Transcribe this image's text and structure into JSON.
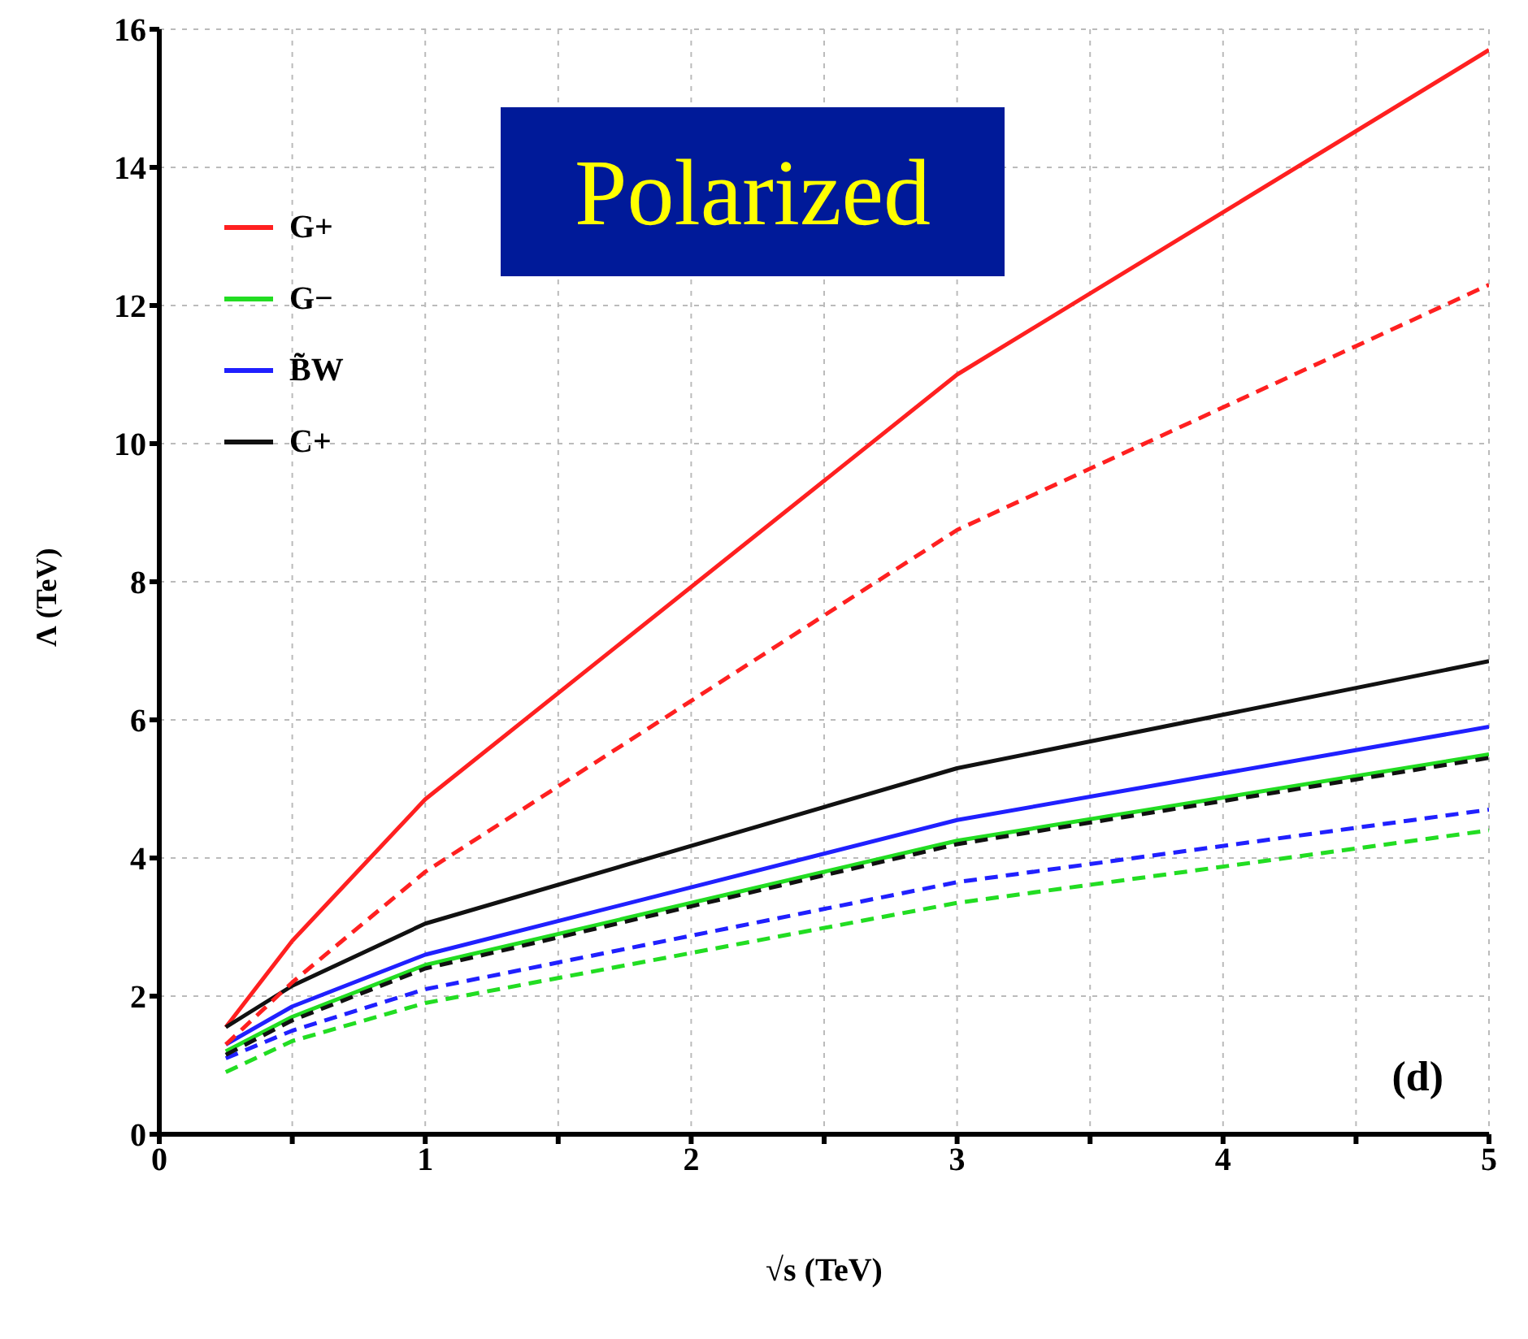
{
  "chart_data": {
    "type": "line",
    "title": "Polarized",
    "xlabel": "√s (TeV)",
    "ylabel": "Λ (TeV)",
    "annotations": [
      "(d)"
    ],
    "x": [
      0.25,
      0.5,
      1,
      3,
      5
    ],
    "series": [
      {
        "name": "G+",
        "color": "#ff2020",
        "line_style": "solid",
        "values": [
          1.55,
          2.8,
          4.85,
          11.0,
          15.7
        ]
      },
      {
        "name": "G−",
        "color": "#22dd22",
        "line_style": "solid",
        "values": [
          1.2,
          1.7,
          2.45,
          4.25,
          5.5
        ]
      },
      {
        "name": "B̃W",
        "color": "#2020ff",
        "line_style": "solid",
        "values": [
          1.3,
          1.85,
          2.6,
          4.55,
          5.9
        ]
      },
      {
        "name": "C+",
        "color": "#111111",
        "line_style": "solid",
        "values": [
          1.55,
          2.15,
          3.05,
          5.3,
          6.85
        ]
      },
      {
        "color": "#ff2020",
        "line_style": "dashed",
        "values": [
          1.3,
          2.2,
          3.8,
          8.75,
          12.3
        ]
      },
      {
        "color": "#22dd22",
        "line_style": "dashed",
        "values": [
          0.9,
          1.35,
          1.9,
          3.35,
          4.4
        ]
      },
      {
        "color": "#2020ff",
        "line_style": "dashed",
        "values": [
          1.1,
          1.5,
          2.1,
          3.65,
          4.7
        ]
      },
      {
        "color": "#111111",
        "line_style": "dashed",
        "values": [
          1.15,
          1.65,
          2.4,
          4.2,
          5.45
        ]
      }
    ],
    "xlim": [
      0,
      5
    ],
    "xticks": [
      0,
      {
        "value": 0.5,
        "label": null
      },
      1,
      {
        "value": 1.5,
        "label": null
      },
      2,
      {
        "value": 2.5,
        "label": null
      },
      3,
      {
        "value": 3.5,
        "label": null
      },
      4,
      {
        "value": 4.5,
        "label": null
      },
      5
    ],
    "ylim": [
      0,
      16
    ],
    "yticks": [
      0,
      2,
      4,
      6,
      8,
      10,
      12,
      14,
      16
    ],
    "grid": true,
    "legend": "top left",
    "marker": "none"
  }
}
